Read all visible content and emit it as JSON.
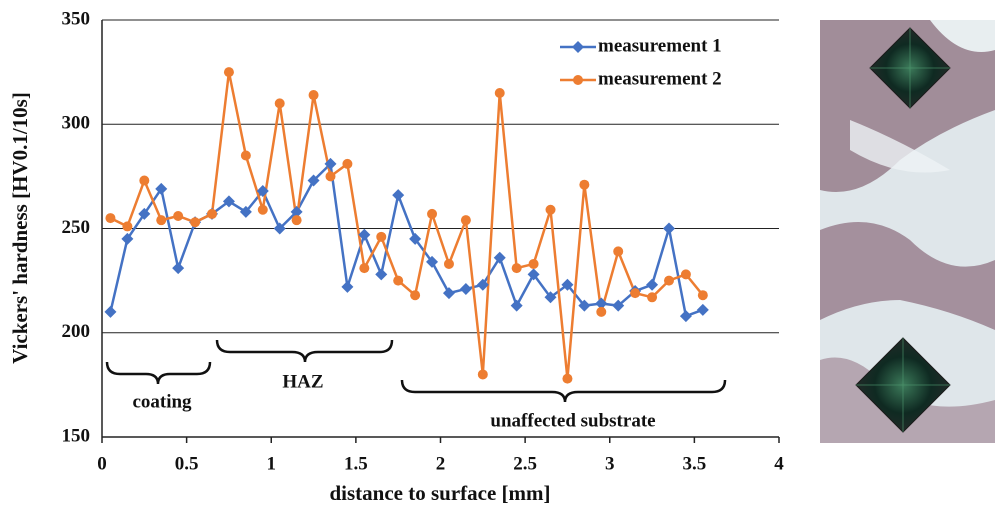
{
  "chart_data": {
    "type": "line",
    "xlabel": "distance to surface [mm]",
    "ylabel": "Vickers' hardness [HV0.1/10s]",
    "x": [
      0.05,
      0.15,
      0.25,
      0.35,
      0.45,
      0.55,
      0.65,
      0.75,
      0.85,
      0.95,
      1.05,
      1.15,
      1.25,
      1.35,
      1.45,
      1.55,
      1.65,
      1.75,
      1.85,
      1.95,
      2.05,
      2.15,
      2.25,
      2.35,
      2.45,
      2.55,
      2.65,
      2.75,
      2.85,
      2.95,
      3.05,
      3.15,
      3.25,
      3.35,
      3.45,
      3.55
    ],
    "series": [
      {
        "name": "measurement 1",
        "color": "#4472c4",
        "marker": "diamond",
        "values": [
          210,
          245,
          257,
          269,
          231,
          253,
          257,
          263,
          258,
          268,
          250,
          258,
          273,
          281,
          222,
          247,
          228,
          266,
          245,
          234,
          219,
          221,
          223,
          236,
          213,
          228,
          217,
          223,
          213,
          214,
          213,
          220,
          223,
          250,
          208,
          211
        ]
      },
      {
        "name": "measurement 2",
        "color": "#ed7d31",
        "marker": "circle",
        "values": [
          255,
          251,
          273,
          254,
          256,
          253,
          257,
          325,
          285,
          259,
          310,
          254,
          314,
          275,
          281,
          231,
          246,
          225,
          218,
          257,
          233,
          254,
          180,
          315,
          231,
          233,
          259,
          178,
          271,
          210,
          239,
          219,
          217,
          225,
          228,
          218
        ]
      }
    ],
    "xlim": [
      0,
      4
    ],
    "xticks": [
      0,
      0.5,
      1,
      1.5,
      2,
      2.5,
      3,
      3.5,
      4
    ],
    "ylim": [
      150,
      350
    ],
    "yticks": [
      150,
      200,
      250,
      300,
      350
    ],
    "grid": true,
    "legend": "upper right",
    "annotations": [
      "coating",
      "HAZ",
      "unaffected substrate"
    ]
  }
}
